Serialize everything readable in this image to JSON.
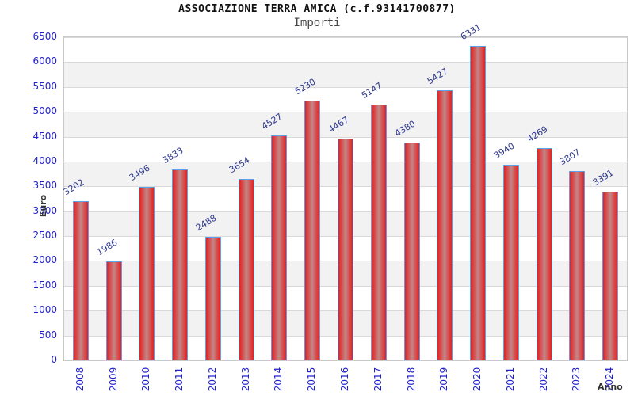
{
  "chart_data": {
    "type": "bar",
    "title": "ASSOCIAZIONE TERRA AMICA (c.f.93141700877)",
    "subtitle": "Importi",
    "xlabel": "Anno",
    "ylabel": "Euro",
    "categories": [
      "2008",
      "2009",
      "2010",
      "2011",
      "2012",
      "2013",
      "2014",
      "2015",
      "2016",
      "2017",
      "2018",
      "2019",
      "2020",
      "2021",
      "2022",
      "2023",
      "2024"
    ],
    "values": [
      3202,
      1986,
      3496,
      3833,
      2488,
      3654,
      4527,
      5230,
      4467,
      5147,
      4380,
      5427,
      6331,
      3940,
      4269,
      3807,
      3391
    ],
    "ylim": [
      0,
      6500
    ],
    "ytick_step": 500,
    "grid": "horizontal alternating bands",
    "legend_position": "none",
    "colors": {
      "bar_edge": "#e32222",
      "bar_mid": "#d94343",
      "bar_center": "#c28787",
      "bar_border": "#5ba0e8",
      "axis_text": "#2222cc",
      "value_label": "#2f3a8f",
      "band_gray": "#f2f2f2",
      "band_white": "#ffffff",
      "grid_line": "#d9d9d9",
      "plot_border": "#c9c9c9",
      "title_color": "#111111",
      "subtitle_color": "#444444",
      "axis_title_color": "#333333"
    }
  }
}
